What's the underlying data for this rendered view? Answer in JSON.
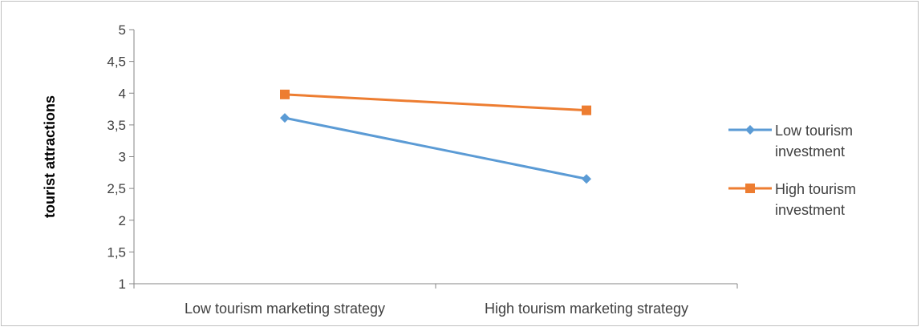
{
  "chart_data": {
    "type": "line",
    "title": "",
    "xlabel": "",
    "ylabel": "tourist attractions",
    "categories": [
      "Low tourism marketing strategy",
      "High tourism marketing strategy"
    ],
    "ylim": [
      1,
      5
    ],
    "yticks": [
      "1",
      "1,5",
      "2",
      "2,5",
      "3",
      "3,5",
      "4",
      "4,5",
      "5"
    ],
    "ytick_values": [
      1,
      1.5,
      2,
      2.5,
      3,
      3.5,
      4,
      4.5,
      5
    ],
    "grid": false,
    "legend_position": "right",
    "series": [
      {
        "name": "Low tourism investment",
        "legend_lines": [
          "Low tourism",
          "investment"
        ],
        "values": [
          3.61,
          2.65
        ],
        "color": "#5b9bd5",
        "marker": "diamond"
      },
      {
        "name": "High tourism investment",
        "legend_lines": [
          "High tourism",
          "investment"
        ],
        "values": [
          3.98,
          3.73
        ],
        "color": "#ed7d31",
        "marker": "square"
      }
    ]
  }
}
